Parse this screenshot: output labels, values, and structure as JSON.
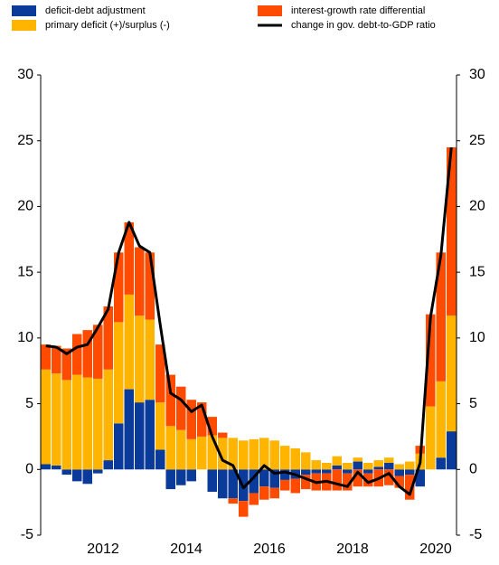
{
  "chart_data": {
    "type": "stacked-bar-line",
    "categories": [
      null,
      null,
      null,
      null,
      null,
      null,
      "2012",
      null,
      null,
      null,
      null,
      null,
      null,
      null,
      "2014",
      null,
      null,
      null,
      null,
      null,
      null,
      null,
      "2016",
      null,
      null,
      null,
      null,
      null,
      null,
      null,
      "2018",
      null,
      null,
      null,
      null,
      null,
      null,
      null,
      "2020",
      null
    ],
    "series": [
      {
        "name": "deficit-debt adjustment",
        "color": "#0a3a9a",
        "kind": "bar",
        "values": [
          0.4,
          0.3,
          -0.4,
          -0.9,
          -1.1,
          -0.3,
          0.7,
          3.5,
          6.1,
          5.1,
          5.3,
          1.5,
          -1.5,
          -1.2,
          -0.9,
          0,
          -1.7,
          -2.2,
          -2.2,
          -2.4,
          -1.8,
          -1.3,
          -1.4,
          -0.8,
          -0.7,
          -0.4,
          -0.3,
          -0.3,
          0.3,
          -0.3,
          0.6,
          -0.3,
          0.2,
          0.5,
          -0.5,
          -0.4,
          -1.3,
          0,
          0.9,
          2.9
        ]
      },
      {
        "name": "primary deficit (+)/surplus (-)",
        "color": "#ffb400",
        "kind": "bar",
        "values": [
          7.2,
          7.0,
          6.8,
          7.2,
          7.0,
          6.9,
          6.9,
          7.7,
          7.2,
          6.6,
          6.1,
          3.6,
          3.3,
          3.0,
          2.3,
          2.5,
          2.6,
          2.4,
          2.4,
          2.2,
          2.3,
          2.4,
          2.2,
          1.8,
          1.6,
          1.3,
          0.7,
          0.5,
          0.7,
          0.5,
          0.3,
          0.5,
          0.5,
          0.4,
          0.4,
          0.6,
          1.2,
          4.8,
          5.8,
          8.8
        ]
      },
      {
        "name": "interest-growth rate differential",
        "color": "#ff4b00",
        "kind": "bar",
        "values": [
          1.9,
          2.1,
          2.4,
          3.1,
          3.6,
          4.1,
          4.8,
          5.3,
          5.5,
          5.2,
          5.1,
          4.4,
          3.9,
          3.3,
          3.0,
          2.6,
          1.4,
          0.4,
          -0.4,
          -1.2,
          -0.9,
          -1.0,
          -0.8,
          -0.8,
          -1.1,
          -1.1,
          -1.3,
          -1.3,
          -1.6,
          -1.3,
          -1.3,
          -1.0,
          -1.3,
          -1.2,
          -0.9,
          -1.9,
          0.6,
          7.0,
          9.8,
          12.8
        ]
      },
      {
        "name": "change in gov. debt-to-GDP ratio",
        "color": "#000000",
        "kind": "line",
        "values": [
          9.4,
          9.3,
          8.8,
          9.3,
          9.5,
          10.8,
          12.2,
          16.5,
          18.8,
          17.0,
          16.5,
          11.0,
          5.8,
          5.3,
          4.4,
          4.9,
          2.5,
          0.7,
          0.3,
          -1.4,
          -0.6,
          0.3,
          -0.3,
          -0.2,
          -0.4,
          -0.7,
          -1.0,
          -0.9,
          -1.1,
          -1.3,
          -0.2,
          -1.0,
          -0.7,
          -0.3,
          -1.3,
          -1.9,
          0.5,
          11.6,
          16.3,
          24.5
        ]
      }
    ],
    "ylim": [
      -5,
      30
    ],
    "yticks": [
      -5,
      0,
      5,
      10,
      15,
      20,
      25,
      30
    ]
  }
}
